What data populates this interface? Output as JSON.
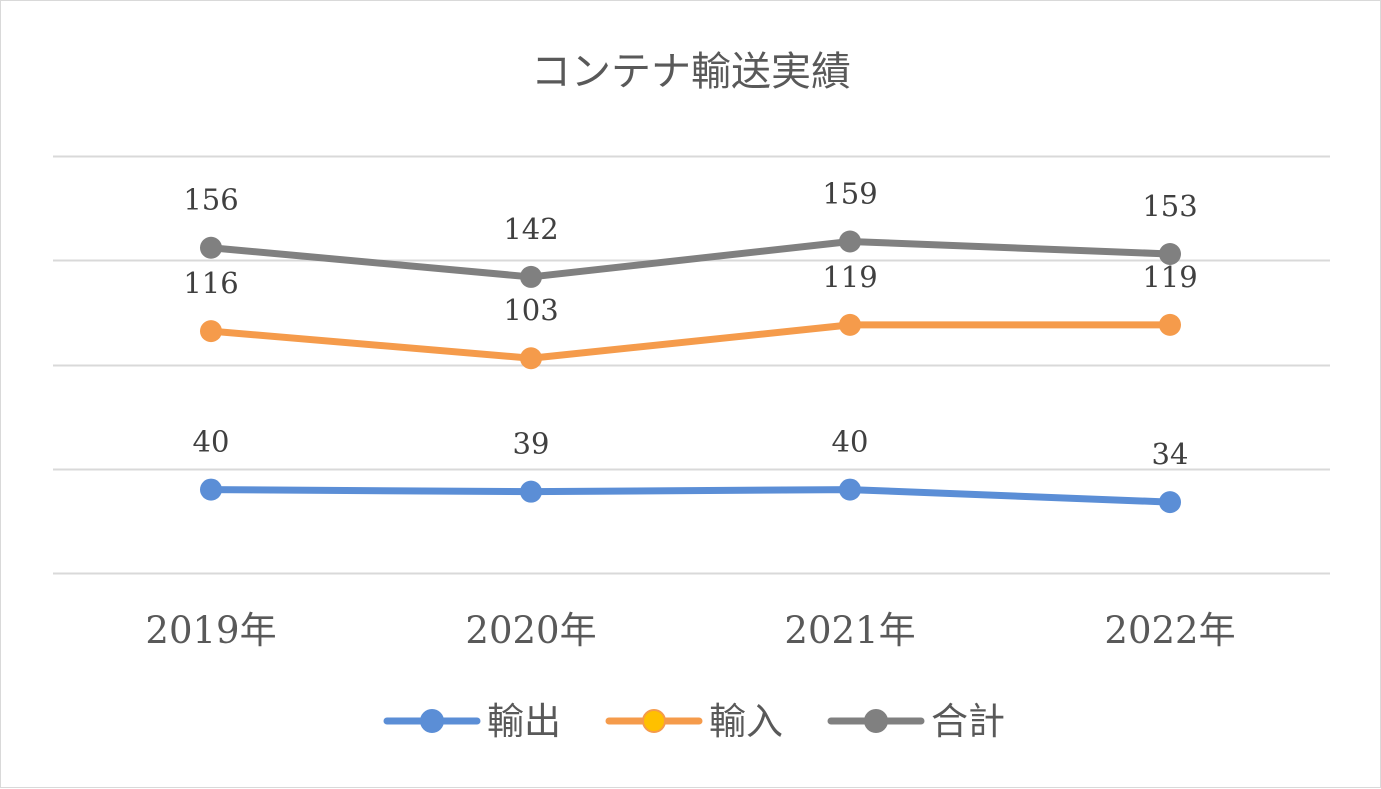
{
  "chart_data": {
    "type": "line",
    "title": "コンテナ輸送実績",
    "xlabel": "",
    "ylabel": "",
    "categories": [
      "2019年",
      "2020年",
      "2021年",
      "2022年"
    ],
    "ylim": [
      0,
      200
    ],
    "grid": true,
    "legend_position": "bottom",
    "series": [
      {
        "name": "輸出",
        "values": [
          40,
          39,
          40,
          34
        ],
        "color": "#5b8ed6"
      },
      {
        "name": "輸入",
        "values": [
          116,
          103,
          119,
          119
        ],
        "color": "#f59b4b",
        "legend_marker_fill": "#ffc000"
      },
      {
        "name": "合計",
        "values": [
          156,
          142,
          159,
          153
        ],
        "color": "#808080"
      }
    ]
  }
}
